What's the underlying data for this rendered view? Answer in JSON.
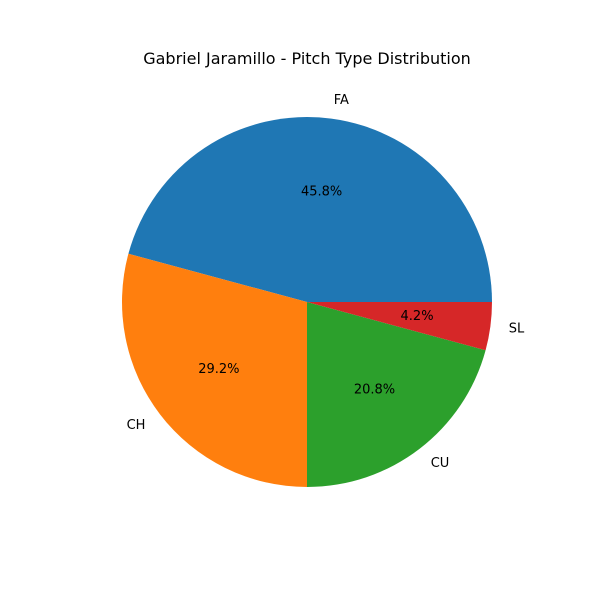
{
  "chart_data": {
    "type": "pie",
    "title": "Gabriel Jaramillo - Pitch Type Distribution",
    "start_angle_deg": 0,
    "direction": "counterclockwise",
    "slices": [
      {
        "label": "FA",
        "value": 45.8,
        "pct_text": "45.8%",
        "color": "#1f77b4"
      },
      {
        "label": "CH",
        "value": 29.2,
        "pct_text": "29.2%",
        "color": "#ff7f0e"
      },
      {
        "label": "CU",
        "value": 20.8,
        "pct_text": "20.8%",
        "color": "#2ca02c"
      },
      {
        "label": "SL",
        "value": 4.2,
        "pct_text": "4.2%",
        "color": "#d62728"
      }
    ],
    "legend": false,
    "grid": false
  }
}
